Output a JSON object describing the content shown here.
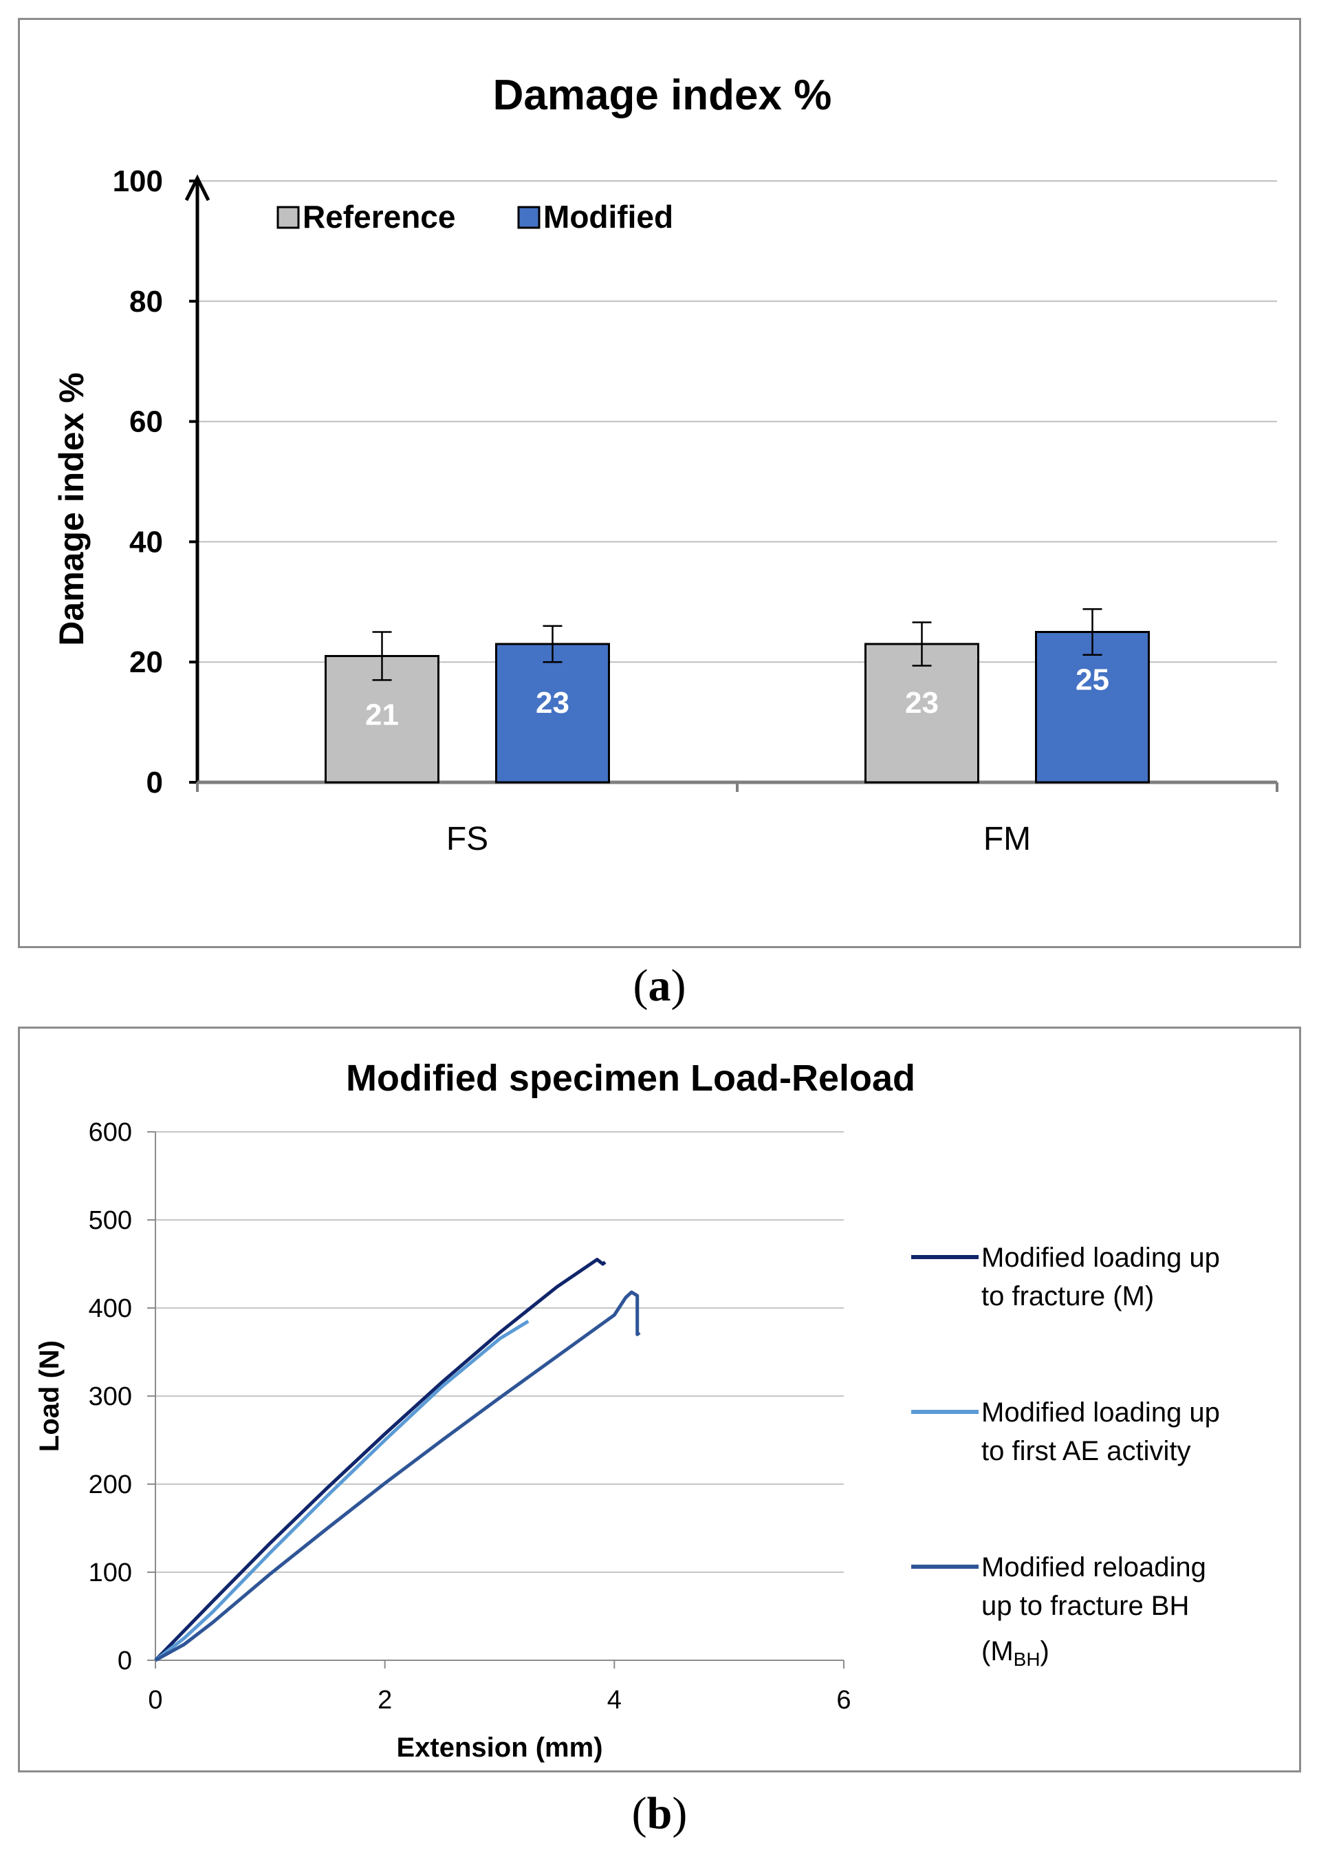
{
  "panel_a": {
    "caption_open": "(",
    "caption_letter": "a",
    "caption_close": ")"
  },
  "panel_b": {
    "caption_open": "(",
    "caption_letter": "b",
    "caption_close": ")"
  },
  "chart_data": [
    {
      "type": "bar",
      "title": "Damage index %",
      "xlabel": "",
      "ylabel": "Damage index %",
      "ylim": [
        0,
        100
      ],
      "yticks": [
        0,
        20,
        40,
        60,
        80,
        100
      ],
      "grid": true,
      "legend": "top-left",
      "categories": [
        "FS",
        "FM"
      ],
      "series": [
        {
          "name": "Reference",
          "color": "#c0c0c0",
          "label_color": "#ffffff",
          "values": [
            21,
            23
          ],
          "errors": [
            4,
            3.6
          ]
        },
        {
          "name": "Modified",
          "color": "#4472c4",
          "label_color": "#ffffff",
          "values": [
            23,
            25
          ],
          "errors": [
            3,
            3.8
          ]
        }
      ]
    },
    {
      "type": "line",
      "title": "Modified specimen Load-Reload",
      "xlabel": "Extension (mm)",
      "ylabel": "Load (N)",
      "xlim": [
        0,
        6
      ],
      "ylim": [
        0,
        600
      ],
      "xticks": [
        0,
        2,
        4,
        6
      ],
      "yticks": [
        0,
        100,
        200,
        300,
        400,
        500,
        600
      ],
      "grid": true,
      "legend": "right",
      "series": [
        {
          "name": "Modified loading up to fracture (M)",
          "legend_lines": [
            "Modified loading up",
            "to fracture (M)"
          ],
          "color": "#10256a",
          "x": [
            0,
            0.5,
            1.0,
            1.5,
            2.0,
            2.5,
            3.0,
            3.5,
            3.85,
            3.9,
            3.92
          ],
          "y": [
            0,
            67,
            133,
            196,
            257,
            316,
            372,
            424,
            455,
            450,
            452
          ]
        },
        {
          "name": "Modified loading up to first AE activity",
          "legend_lines": [
            "Modified loading up",
            "to first AE activity"
          ],
          "color": "#5b9bd5",
          "x": [
            0,
            0.25,
            0.5,
            1.0,
            1.5,
            2.0,
            2.5,
            3.0,
            3.25
          ],
          "y": [
            0,
            25,
            55,
            122,
            187,
            250,
            311,
            365,
            385
          ]
        },
        {
          "name": "Modified reloading up to fracture BH (MBH)",
          "legend_lines": [
            "Modified reloading",
            "up to fracture BH"
          ],
          "legend_sub_main": "(M",
          "legend_sub": "BH",
          "legend_sub_close": ")",
          "color": "#2f5597",
          "x": [
            0,
            0.25,
            0.5,
            1.0,
            1.5,
            2.0,
            2.5,
            3.0,
            3.5,
            4.0,
            4.1,
            4.15,
            4.2,
            4.2,
            4.22
          ],
          "y": [
            0,
            18,
            43,
            98,
            150,
            201,
            250,
            298,
            345,
            392,
            412,
            418,
            414,
            370,
            372
          ]
        }
      ]
    }
  ]
}
